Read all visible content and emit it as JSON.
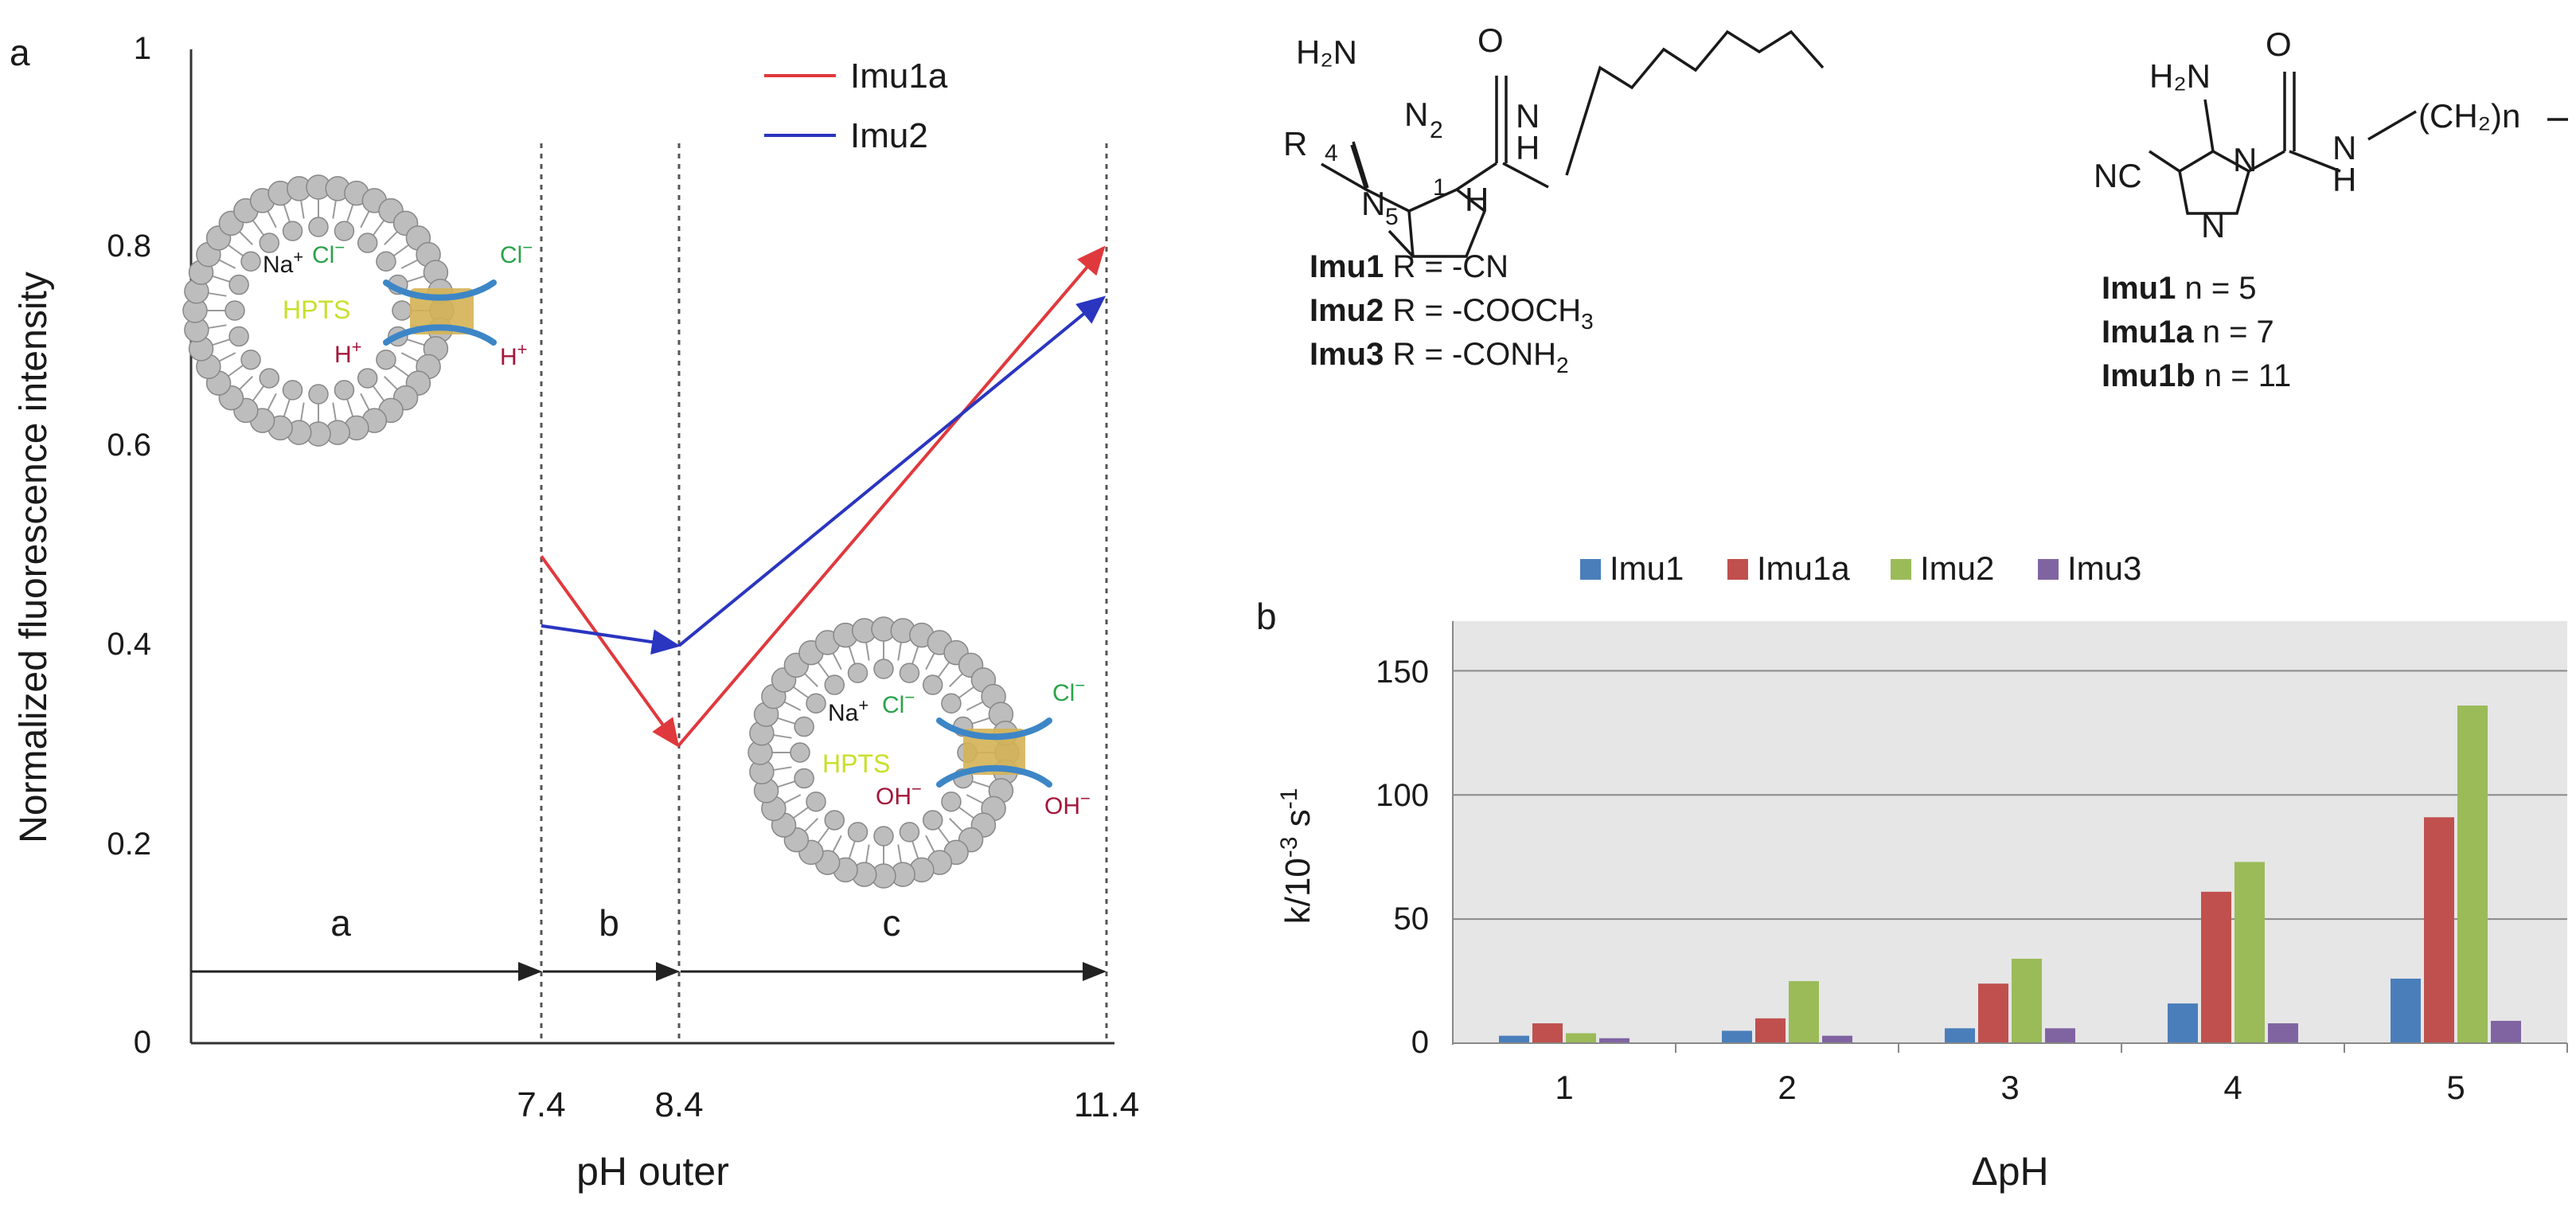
{
  "chart_data": [
    {
      "panel_label": "a",
      "type": "line",
      "title": "",
      "xlabel": "pH outer",
      "ylabel": "Normalized fluorescence intensity",
      "ylim": [
        0,
        1
      ],
      "yticks": [
        "0",
        "0.2",
        "0.4",
        "0.6",
        "0.8",
        "1"
      ],
      "xticks": [
        "7.4",
        "8.4",
        "11.4"
      ],
      "legend_position": "top-right",
      "series": [
        {
          "name": "Imu1a",
          "color": "#e0393d",
          "x": [
            7.4,
            8.4,
            11.4
          ],
          "y": [
            0.49,
            0.3,
            0.8
          ]
        },
        {
          "name": "Imu2",
          "color": "#2a35c0",
          "x": [
            7.4,
            8.4,
            11.4
          ],
          "y": [
            0.42,
            0.4,
            0.75
          ]
        }
      ],
      "regions": [
        "a",
        "b",
        "c"
      ],
      "vesicle_top": {
        "ion1": "Na",
        "ion1_sup": "+",
        "ion2": "Cl",
        "ion2_sup": "−",
        "dye": "HPTS",
        "proton": "H",
        "proton_sup": "+",
        "out_anion": "Cl",
        "out_anion_sup": "−",
        "out_cation": "H",
        "out_cation_sup": "+"
      },
      "vesicle_bottom": {
        "ion1": "Na",
        "ion1_sup": "+",
        "ion2": "Cl",
        "ion2_sup": "−",
        "dye": "HPTS",
        "hydroxide": "OH",
        "hydroxide_sup": "−",
        "out_anion": "Cl",
        "out_anion_sup": "−",
        "out_hydroxide": "OH",
        "out_hydroxide_sup": "−"
      }
    },
    {
      "panel_label": "b",
      "type": "bar",
      "title": "",
      "xlabel": "ΔpH",
      "ylabel_main": "k/10",
      "ylabel_exp": "-3",
      "ylabel_unit": " s",
      "ylabel_unit_exp": "-1",
      "categories": [
        "1",
        "2",
        "3",
        "4",
        "5"
      ],
      "ylim": [
        0,
        170
      ],
      "yticks": [
        "0",
        "50",
        "100",
        "150"
      ],
      "grid": true,
      "legend_position": "top",
      "series": [
        {
          "name": "Imu1",
          "color": "#4a7ebb",
          "values": [
            3,
            5,
            6,
            16,
            26
          ]
        },
        {
          "name": "Imu1a",
          "color": "#c0504d",
          "values": [
            8,
            10,
            24,
            61,
            91
          ]
        },
        {
          "name": "Imu2",
          "color": "#9bbb59",
          "values": [
            4,
            25,
            34,
            73,
            136
          ]
        },
        {
          "name": "Imu3",
          "color": "#8064a2",
          "values": [
            2,
            3,
            6,
            8,
            9
          ]
        }
      ]
    }
  ],
  "structure_left": {
    "atoms": {
      "nh2": "H₂N",
      "o": "O",
      "r": "R",
      "n": "N",
      "h_nh": "H",
      "h": "H"
    },
    "numbers": {
      "n1": "1",
      "n2": "2",
      "n4": "4",
      "n5": "5"
    },
    "compounds": [
      {
        "name": "Imu1",
        "desc": " R = -CN",
        "sub": ""
      },
      {
        "name": "Imu2",
        "desc": " R = -COOCH",
        "sub": "3"
      },
      {
        "name": "Imu3",
        "desc": " R = -CONH",
        "sub": "2"
      }
    ]
  },
  "structure_right": {
    "atoms": {
      "nh2": "H₂N",
      "o": "O",
      "nc": "NC",
      "n": "N",
      "h": "H",
      "chain": "(CH₂)n"
    },
    "compounds": [
      {
        "name": "Imu1",
        "desc": "   n = 5"
      },
      {
        "name": "Imu1a",
        "desc": " n = 7"
      },
      {
        "name": "Imu1b",
        "desc": " n = 11"
      }
    ]
  }
}
